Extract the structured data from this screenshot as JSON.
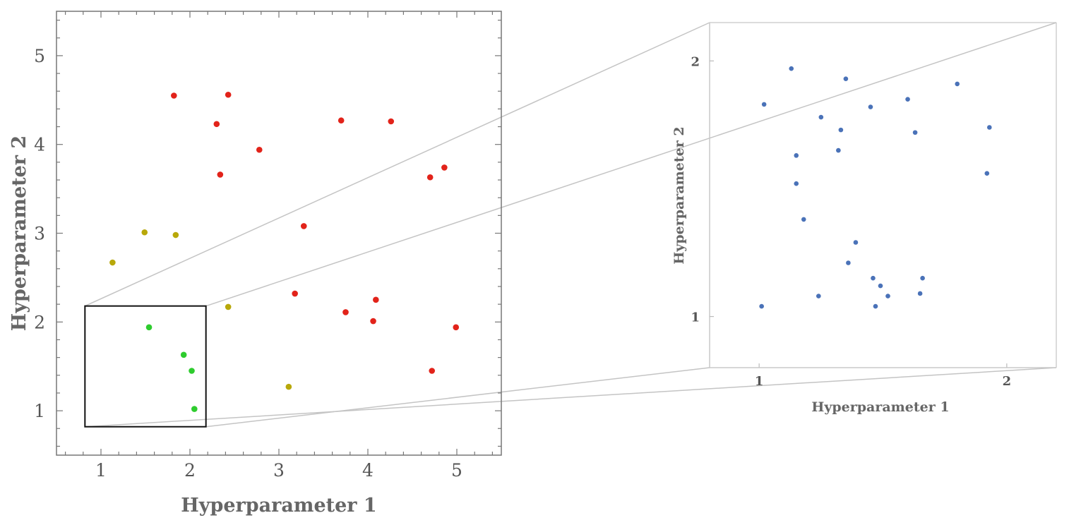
{
  "chart_data": [
    {
      "type": "scatter",
      "title": "",
      "xlabel": "Hyperparameter 1",
      "ylabel": "Hyperparameter 2",
      "xlim": [
        0.5,
        5.5
      ],
      "ylim": [
        0.5,
        5.5
      ],
      "xticks": [
        "1",
        "2",
        "3",
        "4",
        "5"
      ],
      "yticks": [
        "1",
        "2",
        "3",
        "4",
        "5"
      ],
      "grid": false,
      "series": [
        {
          "color": "#e2231a",
          "points": [
            [
              1.82,
              4.55
            ],
            [
              2.43,
              4.56
            ],
            [
              2.3,
              4.23
            ],
            [
              2.78,
              3.94
            ],
            [
              2.34,
              3.66
            ],
            [
              3.7,
              4.27
            ],
            [
              4.26,
              4.26
            ],
            [
              4.7,
              3.63
            ],
            [
              4.86,
              3.74
            ],
            [
              3.28,
              3.08
            ],
            [
              3.18,
              2.32
            ],
            [
              4.09,
              2.25
            ],
            [
              3.75,
              2.11
            ],
            [
              4.06,
              2.01
            ],
            [
              4.99,
              1.94
            ],
            [
              4.72,
              1.45
            ]
          ]
        },
        {
          "color": "#b8a80a",
          "points": [
            [
              1.13,
              2.67
            ],
            [
              1.49,
              3.01
            ],
            [
              1.84,
              2.98
            ],
            [
              2.43,
              2.17
            ],
            [
              3.11,
              1.27
            ]
          ]
        },
        {
          "color": "#2ecc2e",
          "points": [
            [
              1.54,
              1.94
            ],
            [
              1.93,
              1.63
            ],
            [
              2.02,
              1.45
            ],
            [
              2.05,
              1.02
            ]
          ]
        }
      ],
      "zoom_region": {
        "x": [
          0.82,
          2.18
        ],
        "y": [
          0.82,
          2.18
        ]
      }
    },
    {
      "type": "scatter",
      "title": "",
      "xlabel": "Hyperparameter 1",
      "ylabel": "Hyperparameter 2",
      "xlim": [
        0.8,
        2.2
      ],
      "ylim": [
        0.8,
        2.15
      ],
      "xticks": [
        "1",
        "2"
      ],
      "yticks": [
        "1",
        "2"
      ],
      "grid": false,
      "series": [
        {
          "color": "#4a72b8",
          "points": [
            [
              1.13,
              1.97
            ],
            [
              1.35,
              1.93
            ],
            [
              1.8,
              1.91
            ],
            [
              1.02,
              1.83
            ],
            [
              1.6,
              1.85
            ],
            [
              1.45,
              1.82
            ],
            [
              1.25,
              1.78
            ],
            [
              1.33,
              1.73
            ],
            [
              1.63,
              1.72
            ],
            [
              1.93,
              1.74
            ],
            [
              1.32,
              1.65
            ],
            [
              1.15,
              1.63
            ],
            [
              1.92,
              1.56
            ],
            [
              1.15,
              1.52
            ],
            [
              1.18,
              1.38
            ],
            [
              1.39,
              1.29
            ],
            [
              1.36,
              1.21
            ],
            [
              1.46,
              1.15
            ],
            [
              1.66,
              1.15
            ],
            [
              1.49,
              1.12
            ],
            [
              1.24,
              1.08
            ],
            [
              1.52,
              1.08
            ],
            [
              1.65,
              1.09
            ],
            [
              1.01,
              1.04
            ],
            [
              1.47,
              1.04
            ]
          ]
        }
      ]
    }
  ]
}
